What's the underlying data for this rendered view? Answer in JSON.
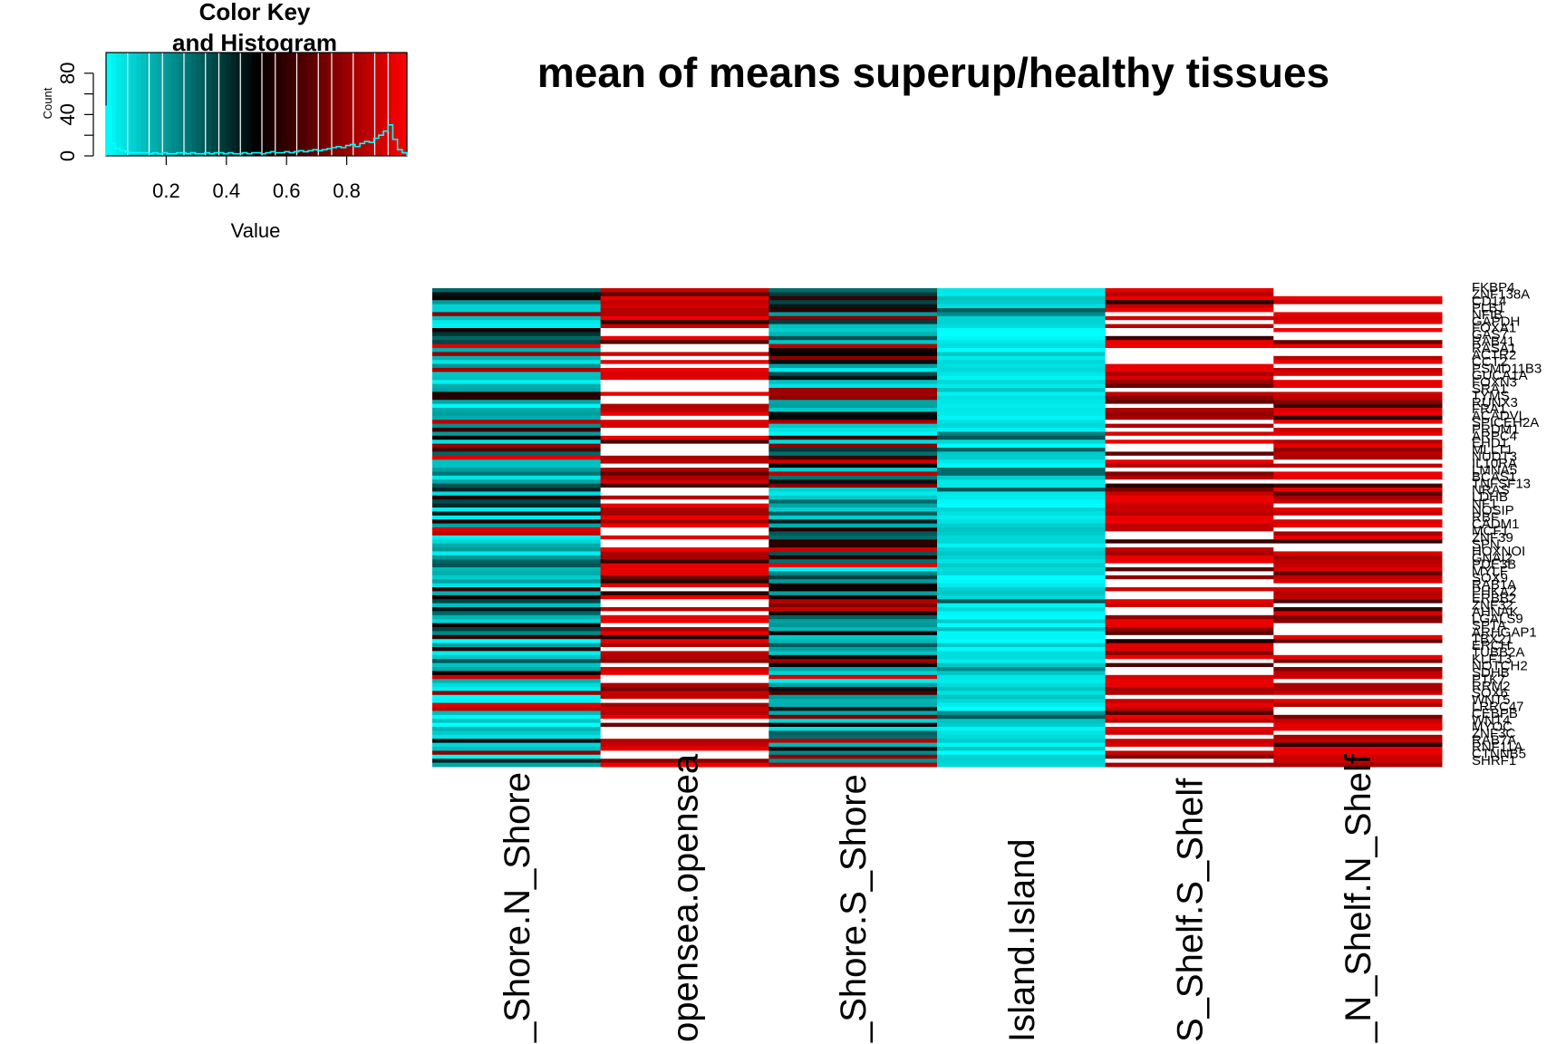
{
  "chart_data": {
    "type": "heatmap",
    "title": "mean of means superup/healthy tissues",
    "columns": [
      "N_Shore.N_Shore",
      "opensea.opensea",
      "S_Shore.S_Shore",
      "Island.Island",
      "S_Shelf.S_Shelf",
      "N_Shelf.N_Shelf"
    ],
    "column_labels_visible": [
      "_Shore.N_Shore",
      "opensea.opensea",
      "_Shore.S_Shore",
      "Island.Island",
      "S_Shelf.S_Shelf",
      "_N_Shelf.N_Shelf"
    ],
    "n_rows": 120,
    "color_scale": {
      "low": "#00FFFF",
      "mid": "#000000",
      "high": "#FF0000",
      "range": [
        0,
        1
      ]
    },
    "column_value_profiles": [
      {
        "column": "N_Shore.N_Shore",
        "pattern": "mixed",
        "mean_approx": 0.45
      },
      {
        "column": "opensea.opensea",
        "pattern": "high",
        "mean_approx": 0.82
      },
      {
        "column": "S_Shore.S_Shore",
        "pattern": "mixed",
        "mean_approx": 0.4
      },
      {
        "column": "Island.Island",
        "pattern": "low",
        "mean_approx": 0.08
      },
      {
        "column": "S_Shelf.S_Shelf",
        "pattern": "high",
        "mean_approx": 0.9
      },
      {
        "column": "N_Shelf.N_Shelf",
        "pattern": "high",
        "mean_approx": 0.88
      }
    ],
    "row_labels_visible": [
      "FKBP4",
      "ZNF138A",
      "CD14",
      "PLB1",
      "NFIB",
      "GAPDH",
      "FOXA1",
      "GAS7",
      "RAB41",
      "RASA1",
      "ACTR2",
      "CCT2",
      "PSMD11B3",
      "GUCA1A",
      "FOXN3",
      "SRA1",
      "TYMS",
      "RUNX3",
      "FRA1",
      "ACADVL",
      "SPICEH2A",
      "PRDM1",
      "ARPC4",
      "EHD1",
      "MLLT1",
      "NUDT3",
      "IL10RA",
      "LMNA5",
      "BCAS1",
      "TNFSF13",
      "NRAS",
      "LDHB",
      "NF1",
      "NOSIP",
      "RBF",
      "CADM1",
      "MCF1",
      "ZNF39",
      "SPN",
      "HOXNOI",
      "GNAI2",
      "PDE3B",
      "MYLF",
      "SOX9",
      "RAB1A",
      "PHKA2",
      "ERBB2",
      "ZNF32",
      "AHNAK",
      "LGALS9",
      "SPTA",
      "ARHGAP1",
      "TBX21",
      "ERCH",
      "TUBB2A",
      "KLF13",
      "NOTCH2",
      "SDHB",
      "PTK7",
      "RRM2",
      "SOX6",
      "WNT5",
      "LRRC47",
      "CEBPB",
      "WNT4",
      "MYOC",
      "ZNF3C",
      "RAB7A",
      "RNF11A",
      "CTNNB5",
      "SHRF1"
    ],
    "color_key": {
      "title_line1": "Color Key",
      "title_line2": "and Histogram",
      "xlabel": "Value",
      "ylabel": "Count",
      "xticks": [
        "0.2",
        "0.4",
        "0.6",
        "0.8"
      ],
      "yticks": [
        "0",
        "40",
        "80"
      ],
      "x_range": [
        0,
        1
      ],
      "y_range": [
        0,
        100
      ],
      "histogram_counts": [
        48,
        12,
        7,
        5,
        4,
        3,
        3,
        3,
        3,
        2,
        3,
        2,
        3,
        2,
        2,
        3,
        3,
        2,
        3,
        2,
        2,
        3,
        2,
        3,
        3,
        2,
        3,
        2,
        2,
        3,
        2,
        3,
        3,
        2,
        3,
        4,
        3,
        3,
        4,
        3,
        4,
        5,
        4,
        5,
        6,
        5,
        6,
        7,
        8,
        9,
        8,
        10,
        11,
        9,
        12,
        14,
        13,
        17,
        20,
        24,
        30,
        16,
        6,
        3
      ]
    }
  }
}
